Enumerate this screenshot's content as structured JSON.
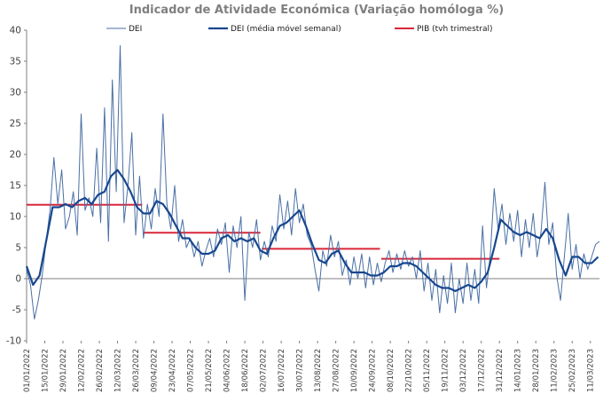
{
  "chart_data": {
    "type": "line",
    "title": "Indicador de Atividade Económica (Variação homóloga %)",
    "xlabel": "",
    "ylabel": "",
    "ylim": [
      -10,
      40
    ],
    "yticks": [
      "-10",
      "-5",
      "0",
      "5",
      "10",
      "15",
      "20",
      "25",
      "30",
      "35",
      "40"
    ],
    "grid": false,
    "legend_position": "top",
    "x_ticks": [
      "01/01/2022",
      "15/01/2022",
      "29/01/2022",
      "12/02/2022",
      "26/02/2022",
      "12/03/2022",
      "26/03/2022",
      "09/04/2022",
      "23/04/2022",
      "07/05/2022",
      "21/05/2022",
      "04/06/2022",
      "18/06/2022",
      "02/07/2022",
      "16/07/2022",
      "30/07/2022",
      "13/08/2022",
      "27/08/2022",
      "10/09/2022",
      "24/09/2022",
      "08/10/2022",
      "22/10/2022",
      "05/11/2022",
      "19/11/2022",
      "03/12/2022",
      "17/12/2022",
      "31/12/2022",
      "14/01/2023",
      "28/01/2023",
      "11/02/2023",
      "25/02/2023",
      "11/03/2023"
    ],
    "series": [
      {
        "name": "DEI",
        "color": "#4a6fa5",
        "points": [
          [
            "01/01/2022",
            1.5
          ],
          [
            "04/01/2022",
            -1.0
          ],
          [
            "07/01/2022",
            -6.5
          ],
          [
            "10/01/2022",
            -3.5
          ],
          [
            "13/01/2022",
            0.5
          ],
          [
            "16/01/2022",
            6.0
          ],
          [
            "19/01/2022",
            11.0
          ],
          [
            "22/01/2022",
            19.5
          ],
          [
            "25/01/2022",
            12.0
          ],
          [
            "28/01/2022",
            17.5
          ],
          [
            "31/01/2022",
            8.0
          ],
          [
            "03/02/2022",
            10.0
          ],
          [
            "06/02/2022",
            14.0
          ],
          [
            "09/02/2022",
            7.0
          ],
          [
            "12/02/2022",
            26.5
          ],
          [
            "15/02/2022",
            11.0
          ],
          [
            "18/02/2022",
            13.0
          ],
          [
            "21/02/2022",
            10.0
          ],
          [
            "24/02/2022",
            21.0
          ],
          [
            "27/02/2022",
            9.0
          ],
          [
            "02/03/2022",
            27.5
          ],
          [
            "05/03/2022",
            6.0
          ],
          [
            "08/03/2022",
            32.0
          ],
          [
            "11/03/2022",
            14.0
          ],
          [
            "14/03/2022",
            37.5
          ],
          [
            "17/03/2022",
            9.0
          ],
          [
            "20/03/2022",
            15.0
          ],
          [
            "23/03/2022",
            23.5
          ],
          [
            "26/03/2022",
            7.0
          ],
          [
            "29/03/2022",
            16.5
          ],
          [
            "01/04/2022",
            6.5
          ],
          [
            "04/04/2022",
            12.0
          ],
          [
            "07/04/2022",
            8.0
          ],
          [
            "10/04/2022",
            14.5
          ],
          [
            "13/04/2022",
            10.0
          ],
          [
            "16/04/2022",
            26.5
          ],
          [
            "19/04/2022",
            12.0
          ],
          [
            "22/04/2022",
            8.0
          ],
          [
            "25/04/2022",
            15.0
          ],
          [
            "28/04/2022",
            6.0
          ],
          [
            "01/05/2022",
            9.5
          ],
          [
            "04/05/2022",
            5.0
          ],
          [
            "07/05/2022",
            6.5
          ],
          [
            "10/05/2022",
            3.5
          ],
          [
            "13/05/2022",
            6.0
          ],
          [
            "16/05/2022",
            2.0
          ],
          [
            "19/05/2022",
            4.5
          ],
          [
            "22/05/2022",
            6.5
          ],
          [
            "25/05/2022",
            3.5
          ],
          [
            "28/05/2022",
            8.0
          ],
          [
            "31/05/2022",
            5.5
          ],
          [
            "03/06/2022",
            9.0
          ],
          [
            "06/06/2022",
            1.0
          ],
          [
            "09/06/2022",
            8.5
          ],
          [
            "12/06/2022",
            5.0
          ],
          [
            "15/06/2022",
            10.0
          ],
          [
            "18/06/2022",
            -3.5
          ],
          [
            "21/06/2022",
            7.5
          ],
          [
            "24/06/2022",
            5.0
          ],
          [
            "27/06/2022",
            9.5
          ],
          [
            "30/06/2022",
            3.0
          ],
          [
            "03/07/2022",
            6.0
          ],
          [
            "06/07/2022",
            3.5
          ],
          [
            "09/07/2022",
            8.5
          ],
          [
            "12/07/2022",
            6.0
          ],
          [
            "15/07/2022",
            13.5
          ],
          [
            "18/07/2022",
            8.0
          ],
          [
            "21/07/2022",
            12.5
          ],
          [
            "24/07/2022",
            7.0
          ],
          [
            "27/07/2022",
            14.5
          ],
          [
            "30/07/2022",
            9.0
          ],
          [
            "02/08/2022",
            12.0
          ],
          [
            "05/08/2022",
            7.0
          ],
          [
            "08/08/2022",
            5.5
          ],
          [
            "11/08/2022",
            1.5
          ],
          [
            "14/08/2022",
            -2.0
          ],
          [
            "17/08/2022",
            4.5
          ],
          [
            "20/08/2022",
            2.0
          ],
          [
            "23/08/2022",
            7.0
          ],
          [
            "26/08/2022",
            3.5
          ],
          [
            "29/08/2022",
            6.0
          ],
          [
            "01/09/2022",
            0.5
          ],
          [
            "04/09/2022",
            3.0
          ],
          [
            "07/09/2022",
            -1.0
          ],
          [
            "10/09/2022",
            3.5
          ],
          [
            "13/09/2022",
            0.0
          ],
          [
            "16/09/2022",
            4.0
          ],
          [
            "19/09/2022",
            -1.5
          ],
          [
            "22/09/2022",
            3.5
          ],
          [
            "25/09/2022",
            -1.0
          ],
          [
            "28/09/2022",
            2.5
          ],
          [
            "01/10/2022",
            -0.5
          ],
          [
            "04/10/2022",
            2.5
          ],
          [
            "07/10/2022",
            4.5
          ],
          [
            "10/10/2022",
            1.0
          ],
          [
            "13/10/2022",
            4.0
          ],
          [
            "16/10/2022",
            1.5
          ],
          [
            "19/10/2022",
            4.5
          ],
          [
            "22/10/2022",
            2.0
          ],
          [
            "25/10/2022",
            3.5
          ],
          [
            "28/10/2022",
            0.0
          ],
          [
            "31/10/2022",
            4.5
          ],
          [
            "03/11/2022",
            -2.0
          ],
          [
            "06/11/2022",
            2.5
          ],
          [
            "09/11/2022",
            -3.5
          ],
          [
            "12/11/2022",
            1.5
          ],
          [
            "15/11/2022",
            -5.5
          ],
          [
            "18/11/2022",
            0.5
          ],
          [
            "21/11/2022",
            -4.0
          ],
          [
            "24/11/2022",
            2.5
          ],
          [
            "27/11/2022",
            -5.5
          ],
          [
            "30/11/2022",
            0.0
          ],
          [
            "03/12/2022",
            -4.0
          ],
          [
            "06/12/2022",
            2.5
          ],
          [
            "09/12/2022",
            -3.5
          ],
          [
            "12/12/2022",
            1.5
          ],
          [
            "15/12/2022",
            -4.0
          ],
          [
            "18/12/2022",
            8.5
          ],
          [
            "21/12/2022",
            -1.5
          ],
          [
            "24/12/2022",
            4.0
          ],
          [
            "27/12/2022",
            14.5
          ],
          [
            "30/12/2022",
            8.0
          ],
          [
            "02/01/2023",
            12.0
          ],
          [
            "05/01/2023",
            5.5
          ],
          [
            "08/01/2023",
            10.5
          ],
          [
            "11/01/2023",
            6.0
          ],
          [
            "14/01/2023",
            11.0
          ],
          [
            "17/01/2023",
            3.5
          ],
          [
            "20/01/2023",
            9.5
          ],
          [
            "23/01/2023",
            5.0
          ],
          [
            "26/01/2023",
            10.5
          ],
          [
            "29/01/2023",
            3.5
          ],
          [
            "01/02/2023",
            7.5
          ],
          [
            "04/02/2023",
            15.5
          ],
          [
            "07/02/2023",
            5.5
          ],
          [
            "10/02/2023",
            9.0
          ],
          [
            "13/02/2023",
            0.5
          ],
          [
            "16/02/2023",
            -3.5
          ],
          [
            "19/02/2023",
            3.5
          ],
          [
            "22/02/2023",
            10.5
          ],
          [
            "25/02/2023",
            1.5
          ],
          [
            "28/02/2023",
            5.5
          ],
          [
            "03/03/2023",
            0.0
          ],
          [
            "06/03/2023",
            4.0
          ],
          [
            "09/03/2023",
            1.5
          ],
          [
            "12/03/2023",
            3.5
          ],
          [
            "15/03/2023",
            5.5
          ],
          [
            "18/03/2023",
            6.0
          ]
        ]
      },
      {
        "name": "DEI (média móvel semanal)",
        "color": "#17478f",
        "points": [
          [
            "01/01/2022",
            2.0
          ],
          [
            "06/01/2022",
            -1.0
          ],
          [
            "11/01/2022",
            0.5
          ],
          [
            "16/01/2022",
            6.0
          ],
          [
            "21/01/2022",
            11.5
          ],
          [
            "26/01/2022",
            11.5
          ],
          [
            "31/01/2022",
            12.0
          ],
          [
            "05/02/2022",
            11.5
          ],
          [
            "10/02/2022",
            12.5
          ],
          [
            "15/02/2022",
            13.0
          ],
          [
            "20/02/2022",
            12.0
          ],
          [
            "25/02/2022",
            13.5
          ],
          [
            "02/03/2022",
            14.0
          ],
          [
            "07/03/2022",
            16.5
          ],
          [
            "12/03/2022",
            17.5
          ],
          [
            "17/03/2022",
            16.0
          ],
          [
            "22/03/2022",
            14.0
          ],
          [
            "27/03/2022",
            11.5
          ],
          [
            "01/04/2022",
            10.5
          ],
          [
            "06/04/2022",
            10.5
          ],
          [
            "11/04/2022",
            12.5
          ],
          [
            "16/04/2022",
            12.0
          ],
          [
            "21/04/2022",
            10.5
          ],
          [
            "26/04/2022",
            8.5
          ],
          [
            "01/05/2022",
            6.5
          ],
          [
            "06/05/2022",
            6.5
          ],
          [
            "11/05/2022",
            5.0
          ],
          [
            "16/05/2022",
            4.0
          ],
          [
            "21/05/2022",
            4.0
          ],
          [
            "26/05/2022",
            4.5
          ],
          [
            "31/05/2022",
            6.5
          ],
          [
            "05/06/2022",
            7.0
          ],
          [
            "10/06/2022",
            6.0
          ],
          [
            "15/06/2022",
            6.5
          ],
          [
            "20/06/2022",
            6.0
          ],
          [
            "25/06/2022",
            6.5
          ],
          [
            "30/06/2022",
            4.5
          ],
          [
            "05/07/2022",
            4.0
          ],
          [
            "10/07/2022",
            6.5
          ],
          [
            "15/07/2022",
            8.5
          ],
          [
            "20/07/2022",
            9.0
          ],
          [
            "25/07/2022",
            10.0
          ],
          [
            "30/07/2022",
            11.0
          ],
          [
            "04/08/2022",
            8.5
          ],
          [
            "09/08/2022",
            5.5
          ],
          [
            "14/08/2022",
            3.0
          ],
          [
            "19/08/2022",
            2.5
          ],
          [
            "24/08/2022",
            4.0
          ],
          [
            "29/08/2022",
            4.5
          ],
          [
            "03/09/2022",
            2.5
          ],
          [
            "08/09/2022",
            1.0
          ],
          [
            "13/09/2022",
            1.0
          ],
          [
            "18/09/2022",
            1.0
          ],
          [
            "23/09/2022",
            0.5
          ],
          [
            "28/09/2022",
            0.5
          ],
          [
            "03/10/2022",
            1.0
          ],
          [
            "08/10/2022",
            2.0
          ],
          [
            "13/10/2022",
            2.0
          ],
          [
            "18/10/2022",
            2.5
          ],
          [
            "23/10/2022",
            2.5
          ],
          [
            "28/10/2022",
            2.0
          ],
          [
            "02/11/2022",
            1.0
          ],
          [
            "07/11/2022",
            0.0
          ],
          [
            "12/11/2022",
            -1.0
          ],
          [
            "17/11/2022",
            -1.5
          ],
          [
            "22/11/2022",
            -1.5
          ],
          [
            "27/11/2022",
            -2.0
          ],
          [
            "02/12/2022",
            -1.5
          ],
          [
            "07/12/2022",
            -1.0
          ],
          [
            "12/12/2022",
            -1.5
          ],
          [
            "17/12/2022",
            -0.5
          ],
          [
            "22/12/2022",
            1.0
          ],
          [
            "27/12/2022",
            5.0
          ],
          [
            "01/01/2023",
            9.5
          ],
          [
            "06/01/2023",
            8.5
          ],
          [
            "11/01/2023",
            7.5
          ],
          [
            "16/01/2023",
            7.0
          ],
          [
            "21/01/2023",
            7.5
          ],
          [
            "26/01/2023",
            7.0
          ],
          [
            "31/01/2023",
            6.5
          ],
          [
            "05/02/2023",
            8.0
          ],
          [
            "10/02/2023",
            6.5
          ],
          [
            "15/02/2023",
            3.0
          ],
          [
            "20/02/2023",
            0.5
          ],
          [
            "25/02/2023",
            3.5
          ],
          [
            "02/03/2023",
            3.5
          ],
          [
            "07/03/2023",
            2.5
          ],
          [
            "12/03/2023",
            2.5
          ],
          [
            "17/03/2023",
            3.5
          ]
        ]
      },
      {
        "name": "PIB (tvh trimestral)",
        "color": "#d9263a",
        "segments": [
          {
            "from": "01/01/2022",
            "to": "31/03/2022",
            "value": 11.9
          },
          {
            "from": "01/04/2022",
            "to": "30/06/2022",
            "value": 7.4
          },
          {
            "from": "01/07/2022",
            "to": "30/09/2022",
            "value": 4.8
          },
          {
            "from": "01/10/2022",
            "to": "31/12/2022",
            "value": 3.2
          }
        ]
      }
    ]
  }
}
